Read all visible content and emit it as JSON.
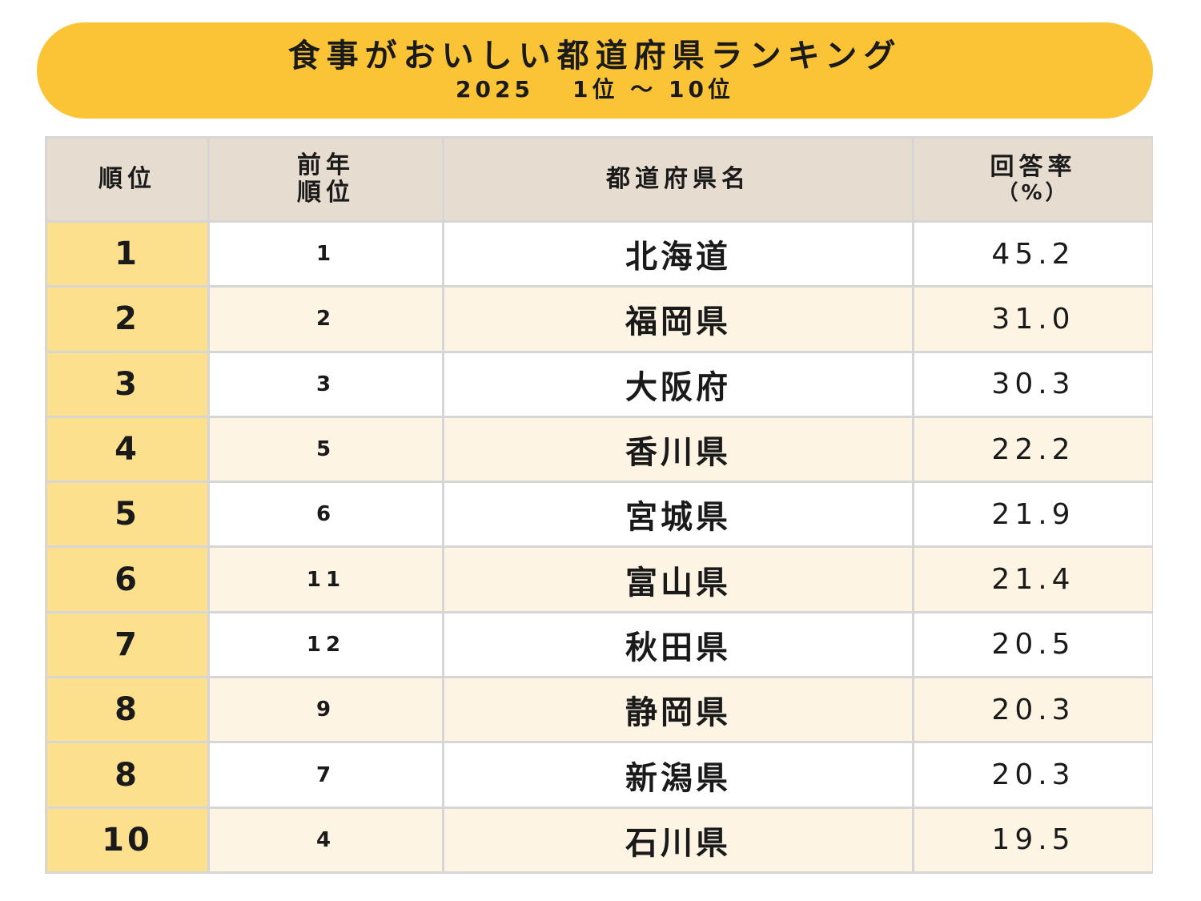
{
  "banner": {
    "title": "食事がおいしい都道府県ランキング",
    "year": "2025",
    "range": "1位 ～ 10位"
  },
  "colors": {
    "banner": "#fbc336",
    "header_bg": "#e6dccf",
    "rank_cell": "#fde08d",
    "row_alt": "#fdf4e3",
    "grid": "#d6d6d6"
  },
  "chart_data": {
    "type": "table",
    "title": "食事がおいしい都道府県ランキング",
    "subtitle": "2025　1位 ～ 10位",
    "columns": [
      {
        "line1": "順位",
        "line2": ""
      },
      {
        "line1": "前年",
        "line2": "順位"
      },
      {
        "line1": "都道府県名",
        "line2": ""
      },
      {
        "line1": "回答率",
        "line2": "（%）"
      }
    ],
    "rows": [
      {
        "rank": "1",
        "prev_rank": "1",
        "prefecture": "北海道",
        "rate": "45.2"
      },
      {
        "rank": "2",
        "prev_rank": "2",
        "prefecture": "福岡県",
        "rate": "31.0"
      },
      {
        "rank": "3",
        "prev_rank": "3",
        "prefecture": "大阪府",
        "rate": "30.3"
      },
      {
        "rank": "4",
        "prev_rank": "5",
        "prefecture": "香川県",
        "rate": "22.2"
      },
      {
        "rank": "5",
        "prev_rank": "6",
        "prefecture": "宮城県",
        "rate": "21.9"
      },
      {
        "rank": "6",
        "prev_rank": "11",
        "prefecture": "富山県",
        "rate": "21.4"
      },
      {
        "rank": "7",
        "prev_rank": "12",
        "prefecture": "秋田県",
        "rate": "20.5"
      },
      {
        "rank": "8",
        "prev_rank": "9",
        "prefecture": "静岡県",
        "rate": "20.3"
      },
      {
        "rank": "8",
        "prev_rank": "7",
        "prefecture": "新潟県",
        "rate": "20.3"
      },
      {
        "rank": "10",
        "prev_rank": "4",
        "prefecture": "石川県",
        "rate": "19.5"
      }
    ]
  }
}
